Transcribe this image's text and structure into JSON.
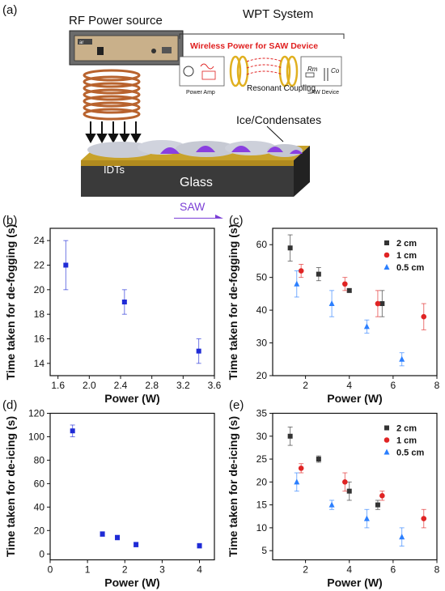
{
  "panel_labels": [
    "(a)",
    "(b)",
    "(c)",
    "(d)",
    "(e)"
  ],
  "schematic": {
    "rf_power_source": "RF Power source",
    "wpt_system": "WPT System",
    "wireless_power": "Wireless Power for SAW Device",
    "power_amp": "Power Amp",
    "resonant_coupling": "Resonant Coupling",
    "saw_device": "SAW Device",
    "rm_label": "Rm",
    "co_label": "Co",
    "ice_label": "Ice/Condensates",
    "idts_label": "IDTs",
    "glass_label": "Glass",
    "saw_label": "SAW",
    "device_brand": "ar",
    "colors": {
      "saw_arrow": "#7b3fd6",
      "wireless_text": "#e02020",
      "glass_dark": "#3a3a3a",
      "gold": "#c8a22a",
      "coil": "#b8632e"
    }
  },
  "chart_data": [
    {
      "id": "b",
      "type": "scatter",
      "xlabel": "Power (W)",
      "ylabel": "Time taken for de-fogging (s)",
      "xlim": [
        1.5,
        3.6
      ],
      "ylim": [
        13,
        25
      ],
      "xticks": [
        1.6,
        2.0,
        2.4,
        2.8,
        3.2,
        3.6
      ],
      "xtick_labels": [
        "1.6",
        "2.0",
        "2.4",
        "2.8",
        "3.2",
        "3.6"
      ],
      "yticks": [
        14,
        16,
        18,
        20,
        22,
        24
      ],
      "ytick_labels": [
        "14",
        "16",
        "18",
        "20",
        "22",
        "24"
      ],
      "series": [
        {
          "marker": "square",
          "color": "#1f2bd6",
          "x": [
            1.7,
            2.45,
            3.4
          ],
          "y": [
            22,
            19,
            15
          ],
          "err": [
            2,
            1,
            1
          ]
        }
      ]
    },
    {
      "id": "c",
      "type": "scatter",
      "xlabel": "Power (W)",
      "ylabel": "Time taken for de-fogging (s)",
      "xlim": [
        0.5,
        8
      ],
      "ylim": [
        20,
        65
      ],
      "xticks": [
        2,
        4,
        6,
        8
      ],
      "xtick_labels": [
        "2",
        "4",
        "6",
        "8"
      ],
      "yticks": [
        20,
        30,
        40,
        50,
        60
      ],
      "ytick_labels": [
        "20",
        "30",
        "40",
        "50",
        "60"
      ],
      "legend_position": "top-right",
      "series": [
        {
          "name": "2 cm",
          "marker": "square",
          "color": "#333333",
          "x": [
            1.3,
            2.6,
            4.0,
            5.5
          ],
          "y": [
            59,
            51,
            46,
            42
          ],
          "err": [
            4,
            2,
            0.5,
            4
          ]
        },
        {
          "name": "1 cm",
          "marker": "circle",
          "color": "#e02424",
          "x": [
            1.8,
            3.8,
            5.3,
            7.4
          ],
          "y": [
            52,
            48,
            42,
            38
          ],
          "err": [
            2,
            2,
            4,
            4
          ]
        },
        {
          "name": "0.5 cm",
          "marker": "triangle",
          "color": "#2b7fff",
          "x": [
            1.6,
            3.2,
            4.8,
            6.4
          ],
          "y": [
            48,
            42,
            35,
            25
          ],
          "err": [
            4,
            4,
            2,
            2
          ]
        }
      ]
    },
    {
      "id": "d",
      "type": "scatter",
      "xlabel": "Power (W)",
      "ylabel": "Time taken for de-icing (s)",
      "xlim": [
        0,
        4.4
      ],
      "ylim": [
        -5,
        120
      ],
      "xticks": [
        0,
        1,
        2,
        3,
        4
      ],
      "xtick_labels": [
        "0",
        "1",
        "2",
        "3",
        "4"
      ],
      "yticks": [
        0,
        20,
        40,
        60,
        80,
        100,
        120
      ],
      "ytick_labels": [
        "0",
        "20",
        "40",
        "60",
        "80",
        "100",
        "120"
      ],
      "series": [
        {
          "marker": "square",
          "color": "#1f2bd6",
          "x": [
            0.6,
            1.4,
            1.8,
            2.3,
            4.0
          ],
          "y": [
            105,
            17,
            14,
            8,
            7
          ],
          "err": [
            5,
            2,
            2,
            2,
            2
          ]
        }
      ]
    },
    {
      "id": "e",
      "type": "scatter",
      "xlabel": "Power (W)",
      "ylabel": "Time taken for de-icing (s)",
      "xlim": [
        0.5,
        8
      ],
      "ylim": [
        3,
        35
      ],
      "xticks": [
        2,
        4,
        6,
        8
      ],
      "xtick_labels": [
        "2",
        "4",
        "6",
        "8"
      ],
      "yticks": [
        5,
        10,
        15,
        20,
        25,
        30,
        35
      ],
      "ytick_labels": [
        "5",
        "10",
        "15",
        "20",
        "25",
        "30",
        "35"
      ],
      "legend_position": "top-right",
      "series": [
        {
          "name": "2 cm",
          "marker": "square",
          "color": "#333333",
          "x": [
            1.3,
            2.6,
            4.0,
            5.3
          ],
          "y": [
            30,
            25,
            18,
            15
          ],
          "err": [
            2,
            0.7,
            2,
            1
          ]
        },
        {
          "name": "1 cm",
          "marker": "circle",
          "color": "#e02424",
          "x": [
            1.8,
            3.8,
            5.5,
            7.4
          ],
          "y": [
            23,
            20,
            17,
            12
          ],
          "err": [
            1,
            2,
            1,
            2
          ]
        },
        {
          "name": "0.5 cm",
          "marker": "triangle",
          "color": "#2b7fff",
          "x": [
            1.6,
            3.2,
            4.8,
            6.4
          ],
          "y": [
            20,
            15,
            12,
            8
          ],
          "err": [
            2,
            1,
            2,
            2
          ]
        }
      ]
    }
  ]
}
